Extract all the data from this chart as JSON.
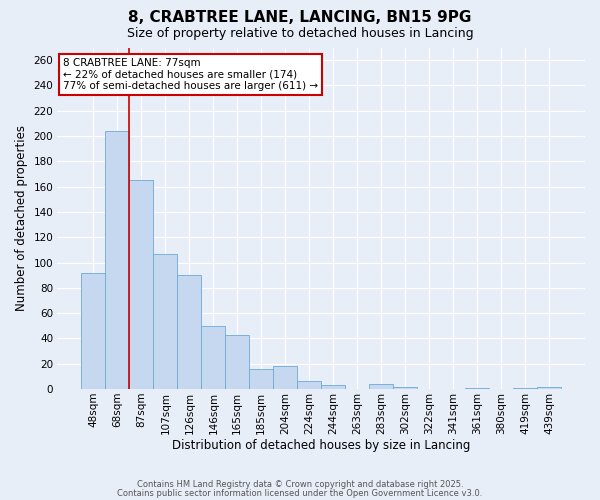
{
  "title": "8, CRABTREE LANE, LANCING, BN15 9PG",
  "subtitle": "Size of property relative to detached houses in Lancing",
  "xlabel": "Distribution of detached houses by size in Lancing",
  "ylabel": "Number of detached properties",
  "bar_values": [
    92,
    204,
    165,
    107,
    90,
    50,
    43,
    16,
    18,
    6,
    3,
    0,
    4,
    2,
    0,
    0,
    1,
    0,
    1,
    2
  ],
  "tick_labels": [
    "48sqm",
    "68sqm",
    "87sqm",
    "107sqm",
    "126sqm",
    "146sqm",
    "165sqm",
    "185sqm",
    "204sqm",
    "224sqm",
    "244sqm",
    "263sqm",
    "283sqm",
    "302sqm",
    "322sqm",
    "341sqm",
    "361sqm",
    "380sqm",
    "419sqm",
    "439sqm"
  ],
  "bar_color": "#c5d8f0",
  "bar_edge_color": "#6aaad4",
  "bar_width": 1.0,
  "ylim": [
    0,
    270
  ],
  "yticks": [
    0,
    20,
    40,
    60,
    80,
    100,
    120,
    140,
    160,
    180,
    200,
    220,
    240,
    260
  ],
  "red_line_x": 1.5,
  "annotation_text": "8 CRABTREE LANE: 77sqm\n← 22% of detached houses are smaller (174)\n77% of semi-detached houses are larger (611) →",
  "annotation_box_color": "#ffffff",
  "annotation_box_edge": "#cc0000",
  "footer1": "Contains HM Land Registry data © Crown copyright and database right 2025.",
  "footer2": "Contains public sector information licensed under the Open Government Licence v3.0.",
  "bg_color": "#e8eef8",
  "grid_color": "#ffffff",
  "title_fontsize": 11,
  "subtitle_fontsize": 9,
  "axis_label_fontsize": 8.5,
  "tick_fontsize": 7.5,
  "ann_fontsize": 7.5,
  "footer_fontsize": 6.0
}
